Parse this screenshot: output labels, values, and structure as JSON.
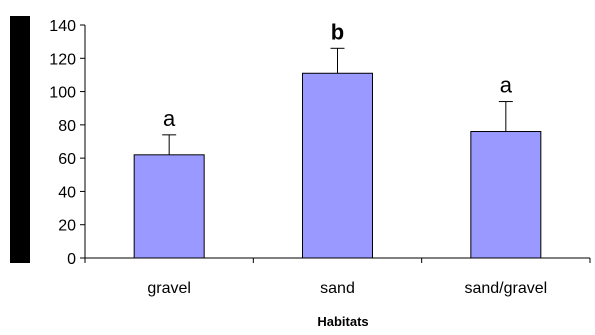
{
  "chart_data": {
    "type": "bar",
    "title": "",
    "xlabel": "Habitats",
    "ylabel": "",
    "ylim": [
      0,
      140
    ],
    "yticks": [
      0,
      20,
      40,
      60,
      80,
      100,
      120,
      140
    ],
    "categories": [
      "gravel",
      "sand",
      "sand/gravel"
    ],
    "values": [
      62,
      111,
      76
    ],
    "error_bars": [
      12,
      15,
      18
    ],
    "significance_labels": [
      "a",
      "b",
      "a"
    ],
    "significance_bold": [
      false,
      true,
      false
    ],
    "bar_color": "#9999ff",
    "grid": false,
    "legend": "none"
  }
}
